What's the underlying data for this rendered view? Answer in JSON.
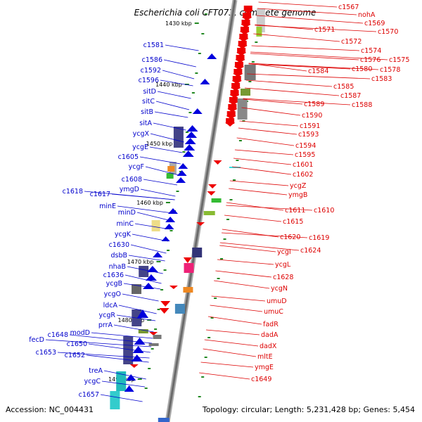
{
  "title": "Escherichia coli CFT073, complete genome",
  "footer": {
    "accession": "Accession: NC_004431",
    "stats": "Topology: circular; Length: 5,231,428 bp; Genes: 5,454"
  },
  "colors": {
    "forward_strand": "#0000dd",
    "reverse_strand": "#ee0000",
    "left_label": "#0000cc",
    "right_label": "#dd0000",
    "tick": "#228822",
    "backbone": "#888888"
  },
  "ticks": [
    "1430 kbp",
    "1440 kbp",
    "1450 kbp",
    "1460 kbp",
    "1470 kbp",
    "1480 kbp",
    "1490 kbp"
  ],
  "left_labels": [
    "c1581",
    "c1586",
    "c1592",
    "c1596",
    "sitD",
    "sitC",
    "sitB",
    "sitA",
    "ycgX",
    "ycgE",
    "c1605",
    "ycgF",
    "c1608",
    "ymgD",
    "c1618",
    "c1617",
    "minE",
    "minD",
    "minC",
    "ycgK",
    "c1630",
    "dsbB",
    "nhaB",
    "c1636",
    "ycgB",
    "ycgO",
    "ldcA",
    "ycgR",
    "prrA",
    "c1648",
    "modD",
    "fecD",
    "c1650",
    "c1653",
    "c1652",
    "treA",
    "ycgC",
    "c1657"
  ],
  "right_labels": [
    "c1567",
    "nohA",
    "c1569",
    "c1571",
    "c1570",
    "c1572",
    "c1574",
    "c1576",
    "c1575",
    "c1580",
    "c1578",
    "c1584",
    "c1583",
    "c1585",
    "c1587",
    "c1589",
    "c1588",
    "c1590",
    "c1591",
    "c1593",
    "c1594",
    "c1595",
    "c1601",
    "c1602",
    "ycgZ",
    "ymgB",
    "c1611",
    "c1610",
    "c1615",
    "c1620",
    "c1619",
    "ycgI",
    "c1624",
    "ycgL",
    "c1628",
    "ycgN",
    "umuD",
    "umuC",
    "fadR",
    "dadA",
    "dadX",
    "mltE",
    "ymgE",
    "c1649"
  ]
}
